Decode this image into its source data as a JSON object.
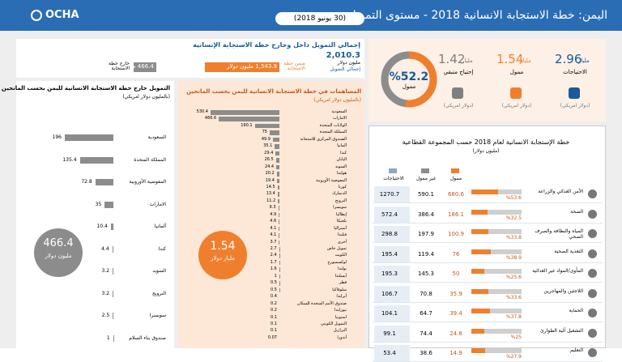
{
  "header": {
    "logo": "OCHA",
    "title": "اليمن: خطة الاستجابة الانسانية 2018 - مستوى التمويل",
    "date": "(30 يونيو 2018)"
  },
  "total_funding": {
    "title": "إجمالي التمويل داخل وخارج خطة الاستجابة الإنسانية",
    "total": {
      "value": 2010.3,
      "label": "2,010.3"
    },
    "total_unit": "مليون دولار",
    "total_label": "إجمالي التمويل",
    "bars": [
      {
        "label": "ضمن خطة الاستجابة",
        "value": 1543.9,
        "value_label": "1,543.9 مليون دولار",
        "color": "#f07f2d"
      },
      {
        "label": "خارج خطة الاستجابة",
        "value": 466.4,
        "value_label": "466.4 مليون دولار",
        "color": "#8c8c8c"
      }
    ]
  },
  "summary": {
    "funded_percent": {
      "value": 52.2,
      "label": "%52.2"
    },
    "funded_label": "ممول",
    "stats": [
      {
        "value": 2.96,
        "unit": "مليار",
        "label": "الاحتياجات",
        "note": "(دولار امريكي)",
        "color": "#1a5a96"
      },
      {
        "value": 1.54,
        "unit": "مليار",
        "label": "ممول",
        "note": "(دولار امريكي)",
        "color": "#f07f2d"
      },
      {
        "value": 1.42,
        "unit": "مليار",
        "label": "إحتياج متبقي",
        "note": "(دولار امريكي)",
        "color": "#7f7f7f"
      }
    ]
  },
  "outside": {
    "title": "التمويل خارج خطة الاستجابة الانسانية لليمن بحسب المانحين",
    "subtitle": "(بالمليون دولار امريكي)",
    "total": 466.4,
    "total_unit": "مليون دولار",
    "donors": [
      {
        "name": "السعودية",
        "value": 196
      },
      {
        "name": "المملكة المتحدة",
        "value": 135.4
      },
      {
        "name": "المفوضية الأوروبية",
        "value": 72.8
      },
      {
        "name": "الامارات",
        "value": 35
      },
      {
        "name": "ألمانيا",
        "value": 10.4
      },
      {
        "name": "كندا",
        "value": 4.4
      },
      {
        "name": "السويد",
        "value": 3.2
      },
      {
        "name": "النرويج",
        "value": 3.2
      },
      {
        "name": "سويسرا",
        "value": 2.5
      },
      {
        "name": "صندوق بناء السلام",
        "value": 1
      }
    ]
  },
  "inside": {
    "title": "المساهمات في خطة الاستجابة الانسانية لليمن بحسب المانحين",
    "subtitle": "(بالمليون دولار امريكي)",
    "total": 1.54,
    "total_unit": "مليار دولار",
    "donors": [
      {
        "name": "السعودية",
        "value": 530.4
      },
      {
        "name": "الامارات",
        "value": 466.6
      },
      {
        "name": "الولايات المتحدة",
        "value": 190.1
      },
      {
        "name": "المملكة المتحدة",
        "value": 75
      },
      {
        "name": "الصندوق المركزي للاستجابة",
        "value": 49.9
      },
      {
        "name": "ألمانيا",
        "value": 35.1
      },
      {
        "name": "كندا",
        "value": 29.4
      },
      {
        "name": "اليابان",
        "value": 26.5
      },
      {
        "name": "السويد",
        "value": 24.4
      },
      {
        "name": "هولندا",
        "value": 20.2
      },
      {
        "name": "المفوضية الأوروبية",
        "value": 19.4
      },
      {
        "name": "كوريا",
        "value": 14.5
      },
      {
        "name": "الدنمارك",
        "value": 13.4
      },
      {
        "name": "النرويج",
        "value": 11.2
      },
      {
        "name": "سويسرا",
        "value": 9.3
      },
      {
        "name": "إيطاليا",
        "value": 4.9
      },
      {
        "name": "بلجيكا",
        "value": 4.6
      },
      {
        "name": "أستراليا",
        "value": 4.1
      },
      {
        "name": "فنلندا",
        "value": 4.1
      },
      {
        "name": "أخرى",
        "value": 3.7
      },
      {
        "name": "تمويل خاص",
        "value": 2.7
      },
      {
        "name": "الكويت",
        "value": 2.4
      },
      {
        "name": "لوكسمبورج",
        "value": 1.7
      },
      {
        "name": "بولندا",
        "value": 1.6
      },
      {
        "name": "أيسلندا",
        "value": 1
      },
      {
        "name": "قطر",
        "value": 0.5
      },
      {
        "name": "سلوفاكيا",
        "value": 0.5
      },
      {
        "name": "أيرلندا",
        "value": 0.4
      },
      {
        "name": "صندوق الأمم المتحدة للسكان",
        "value": 0.2
      },
      {
        "name": "نيوزلندا",
        "value": 0.2
      },
      {
        "name": "استونيا",
        "value": 0.1
      },
      {
        "name": "التمويل الكويتي",
        "value": 0.1
      },
      {
        "name": "البرازيل",
        "value": 0.1
      },
      {
        "name": "أندورا",
        "value": 0.07
      }
    ]
  },
  "clusters": {
    "title": "خطة الإستجابة الانسانية لعام 2018 حسب المجموعة القطاعية",
    "subtitle": "(مليون دولار)",
    "headers": {
      "needs": "الاحتياجات",
      "unfunded": "غير ممول",
      "funded": "ممول"
    },
    "rows": [
      {
        "name": "الأمن الغذائي والزراعة",
        "needs": 1270.7,
        "unfunded": 590.1,
        "funded": 680.6,
        "percent": 53.6,
        "percent_label": "%53.6"
      },
      {
        "name": "الصحة",
        "needs": 572.4,
        "unfunded": 386.4,
        "funded": 186.1,
        "percent": 32.5,
        "percent_label": "%32.5"
      },
      {
        "name": "المياه والنظافة والصرف الصحي",
        "needs": 298.8,
        "unfunded": 197.9,
        "funded": 100.9,
        "percent": 33.8,
        "percent_label": "%33.8"
      },
      {
        "name": "التغذية الصحية",
        "needs": 195.4,
        "unfunded": 119.4,
        "funded": 76,
        "percent": 38.9,
        "percent_label": "%38.9"
      },
      {
        "name": "المأوى/المواد غير الغذائية",
        "needs": 195.3,
        "unfunded": 145.3,
        "funded": 50,
        "percent": 25.6,
        "percent_label": "%25.6"
      },
      {
        "name": "اللاجئين والمهاجرين",
        "needs": 106.7,
        "unfunded": 70.8,
        "funded": 35.9,
        "percent": 33.6,
        "percent_label": "%33.6"
      },
      {
        "name": "الحماية",
        "needs": 104.1,
        "unfunded": 64.7,
        "funded": 39.4,
        "percent": 37.8,
        "percent_label": "%37.8"
      },
      {
        "name": "التشغيل آلية الطوارئ",
        "needs": 99.1,
        "unfunded": 74.4,
        "funded": 24.8,
        "percent": 25,
        "percent_label": "%25"
      },
      {
        "name": "التعليم",
        "needs": 53.4,
        "unfunded": 38.6,
        "funded": 14.9,
        "percent": 27.9,
        "percent_label": "%27.9"
      }
    ]
  }
}
